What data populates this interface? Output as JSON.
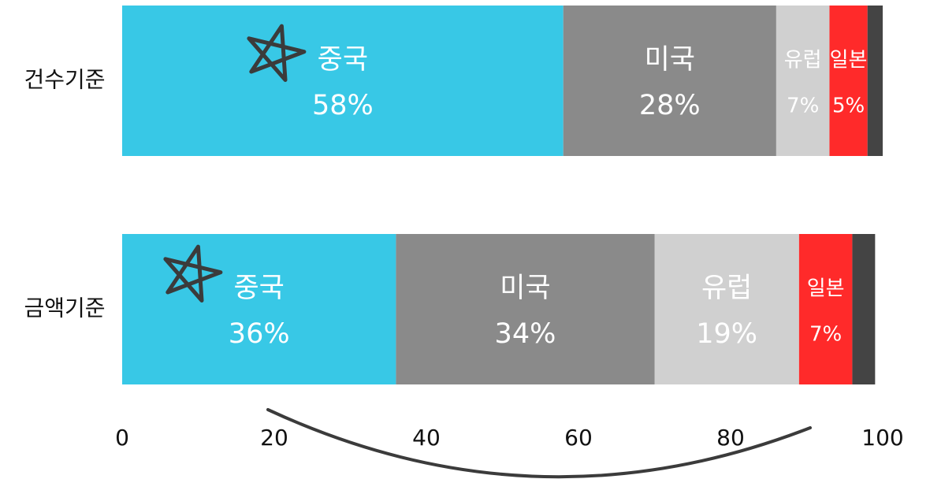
{
  "chart_data": {
    "type": "stacked_bar_horizontal",
    "categories": [
      "건수기준",
      "금액기준"
    ],
    "series": [
      {
        "name": "중국",
        "color": "#38c8e6",
        "values": [
          58,
          36
        ],
        "value_labels": [
          "58%",
          "36%"
        ]
      },
      {
        "name": "미국",
        "color": "#8a8a8a",
        "values": [
          28,
          34
        ],
        "value_labels": [
          "28%",
          "34%"
        ]
      },
      {
        "name": "유럽",
        "color": "#d0d0d0",
        "values": [
          7,
          19
        ],
        "value_labels": [
          "7%",
          "19%"
        ]
      },
      {
        "name": "일본",
        "color": "#ff2a2a",
        "values": [
          5,
          7
        ],
        "value_labels": [
          "5%",
          "7%"
        ]
      },
      {
        "name": null,
        "color": "#444444",
        "values": [
          2,
          3
        ],
        "value_labels": [
          null,
          null
        ]
      }
    ],
    "xlim": [
      0,
      100
    ],
    "xticks": [
      0,
      20,
      40,
      60,
      80,
      100
    ],
    "grid": false
  }
}
